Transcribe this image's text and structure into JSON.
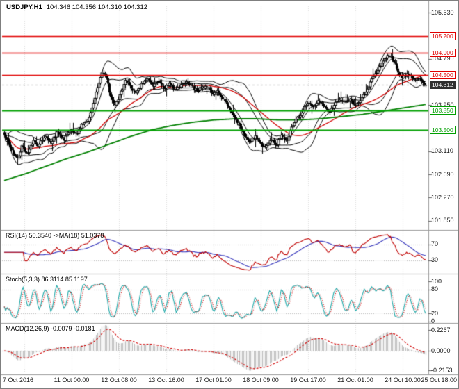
{
  "window": {
    "symbol_timeframe": "USDJPY,H1",
    "quote_line": "104.346 104.356 104.310 104.312"
  },
  "colors": {
    "resistance": "#e10000",
    "support": "#00a000",
    "current_price_bg": "#2f2f2f",
    "ma_fast": "#d40000",
    "ma_slow": "#008000",
    "rsi_line": "#c00000",
    "rsi_ma": "#3333bb",
    "stoch_main": "#1fa8a8",
    "stoch_signal": "#d00000",
    "macd_hist": "#b9b9b9",
    "macd_signal": "#d00000"
  },
  "main_chart": {
    "y_ticks": [
      {
        "label": "105.630",
        "price": 105.63
      },
      {
        "label": "104.790",
        "price": 104.79
      },
      {
        "label": "103.950",
        "price": 103.95
      },
      {
        "label": "103.110",
        "price": 103.11
      },
      {
        "label": "102.690",
        "price": 102.69
      },
      {
        "label": "102.270",
        "price": 102.27
      },
      {
        "label": "101.850",
        "price": 101.85
      }
    ],
    "levels": [
      {
        "label": "105.200",
        "price": 105.2,
        "kind": "resistance"
      },
      {
        "label": "104.900",
        "price": 104.9,
        "kind": "resistance"
      },
      {
        "label": "104.500",
        "price": 104.5,
        "kind": "resistance"
      },
      {
        "label": "103.850",
        "price": 103.85,
        "kind": "support"
      },
      {
        "label": "103.500",
        "price": 103.5,
        "kind": "support"
      }
    ],
    "current_price": {
      "label": "104.312",
      "price": 104.312
    }
  },
  "panels": {
    "rsi": {
      "label": "RSI(14) 50.3540 ->MA(18) 51.0378",
      "y_ticks": [
        {
          "label": "70",
          "value": 70
        },
        {
          "label": "30",
          "value": 30
        }
      ],
      "levels": [
        70,
        30
      ]
    },
    "stoch": {
      "label": "Stoch(5,3,3) 86.3114 85.1197",
      "y_ticks": [
        {
          "label": "100",
          "value": 100
        },
        {
          "label": "80",
          "value": 80
        },
        {
          "label": "20",
          "value": 20
        },
        {
          "label": "0",
          "value": 0
        }
      ],
      "levels": [
        80,
        20
      ]
    },
    "macd": {
      "label": "MACD(12,26,9) -0.0079 -0.0181",
      "y_ticks": [
        {
          "label": "0.2267",
          "value": 0.2267
        },
        {
          "label": "0.0000",
          "value": 0
        },
        {
          "label": "-0.2153",
          "value": -0.2153
        }
      ],
      "levels": [
        0
      ]
    }
  },
  "time_axis": {
    "labels": [
      "7 Oct 2016",
      "11 Oct 00:00",
      "12 Oct 08:00",
      "13 Oct 16:00",
      "17 Oct 01:00",
      "18 Oct 09:00",
      "19 Oct 17:00",
      "21 Oct 01:00",
      "24 Oct 10:00",
      "25 Oct 18:00"
    ]
  },
  "chart_data": {
    "type": "candlestick",
    "symbol": "USDJPY",
    "timeframe": "H1",
    "quote": {
      "open": 104.346,
      "high": 104.356,
      "low": 104.31,
      "close": 104.312
    },
    "price_axis": {
      "top": 105.63,
      "step": 0.42,
      "ticks": [
        105.63,
        105.21,
        104.79,
        104.37,
        103.95,
        103.53,
        103.11,
        102.69,
        102.27,
        101.85
      ]
    },
    "resistance_levels": [
      105.2,
      104.9,
      104.5
    ],
    "support_levels": [
      103.85,
      103.5
    ],
    "indicators": {
      "bollinger": [
        20,
        2
      ],
      "ma_fast_period": 45,
      "rsi_period": 14,
      "rsi_ma_period": 18,
      "stoch": "5,3,3",
      "macd": "12,26,9"
    },
    "close_waypoints": [
      [
        0.0,
        103.4
      ],
      [
        0.01,
        103.28
      ],
      [
        0.022,
        103.05
      ],
      [
        0.032,
        102.98
      ],
      [
        0.042,
        103.2
      ],
      [
        0.055,
        103.06
      ],
      [
        0.068,
        103.3
      ],
      [
        0.08,
        103.2
      ],
      [
        0.095,
        103.38
      ],
      [
        0.11,
        103.25
      ],
      [
        0.125,
        103.45
      ],
      [
        0.14,
        103.3
      ],
      [
        0.155,
        103.5
      ],
      [
        0.17,
        103.42
      ],
      [
        0.185,
        103.6
      ],
      [
        0.2,
        103.68
      ],
      [
        0.212,
        104.0
      ],
      [
        0.222,
        104.3
      ],
      [
        0.232,
        104.55
      ],
      [
        0.242,
        104.45
      ],
      [
        0.252,
        104.1
      ],
      [
        0.262,
        103.92
      ],
      [
        0.275,
        104.15
      ],
      [
        0.288,
        104.4
      ],
      [
        0.3,
        104.28
      ],
      [
        0.312,
        104.15
      ],
      [
        0.325,
        104.32
      ],
      [
        0.338,
        104.42
      ],
      [
        0.352,
        104.3
      ],
      [
        0.365,
        104.4
      ],
      [
        0.378,
        104.25
      ],
      [
        0.392,
        104.35
      ],
      [
        0.405,
        104.22
      ],
      [
        0.418,
        104.3
      ],
      [
        0.432,
        104.38
      ],
      [
        0.445,
        104.28
      ],
      [
        0.458,
        104.2
      ],
      [
        0.47,
        104.3
      ],
      [
        0.482,
        104.25
      ],
      [
        0.495,
        104.15
      ],
      [
        0.508,
        104.2
      ],
      [
        0.52,
        104.05
      ],
      [
        0.532,
        103.9
      ],
      [
        0.545,
        103.75
      ],
      [
        0.558,
        103.58
      ],
      [
        0.57,
        103.4
      ],
      [
        0.582,
        103.28
      ],
      [
        0.595,
        103.38
      ],
      [
        0.608,
        103.22
      ],
      [
        0.62,
        103.18
      ],
      [
        0.632,
        103.35
      ],
      [
        0.645,
        103.22
      ],
      [
        0.658,
        103.4
      ],
      [
        0.67,
        103.3
      ],
      [
        0.682,
        103.55
      ],
      [
        0.695,
        103.7
      ],
      [
        0.708,
        103.85
      ],
      [
        0.72,
        104.0
      ],
      [
        0.732,
        103.92
      ],
      [
        0.745,
        104.05
      ],
      [
        0.758,
        103.95
      ],
      [
        0.77,
        103.82
      ],
      [
        0.782,
        103.95
      ],
      [
        0.795,
        104.05
      ],
      [
        0.808,
        103.98
      ],
      [
        0.82,
        104.08
      ],
      [
        0.832,
        103.9
      ],
      [
        0.845,
        104.05
      ],
      [
        0.858,
        104.2
      ],
      [
        0.87,
        104.38
      ],
      [
        0.882,
        104.55
      ],
      [
        0.895,
        104.68
      ],
      [
        0.905,
        104.8
      ],
      [
        0.915,
        104.85
      ],
      [
        0.925,
        104.72
      ],
      [
        0.935,
        104.55
      ],
      [
        0.945,
        104.42
      ],
      [
        0.955,
        104.52
      ],
      [
        0.965,
        104.45
      ],
      [
        0.975,
        104.38
      ],
      [
        0.985,
        104.42
      ],
      [
        1.0,
        104.31
      ]
    ],
    "slow_ma_waypoints": [
      [
        0.0,
        102.58
      ],
      [
        0.05,
        102.7
      ],
      [
        0.1,
        102.84
      ],
      [
        0.15,
        102.98
      ],
      [
        0.2,
        103.1
      ],
      [
        0.25,
        103.24
      ],
      [
        0.3,
        103.38
      ],
      [
        0.35,
        103.5
      ],
      [
        0.4,
        103.58
      ],
      [
        0.45,
        103.64
      ],
      [
        0.5,
        103.68
      ],
      [
        0.55,
        103.7
      ],
      [
        0.6,
        103.7
      ],
      [
        0.65,
        103.68
      ],
      [
        0.7,
        103.68
      ],
      [
        0.75,
        103.7
      ],
      [
        0.8,
        103.74
      ],
      [
        0.85,
        103.78
      ],
      [
        0.9,
        103.84
      ],
      [
        0.95,
        103.9
      ],
      [
        1.0,
        103.96
      ]
    ]
  }
}
